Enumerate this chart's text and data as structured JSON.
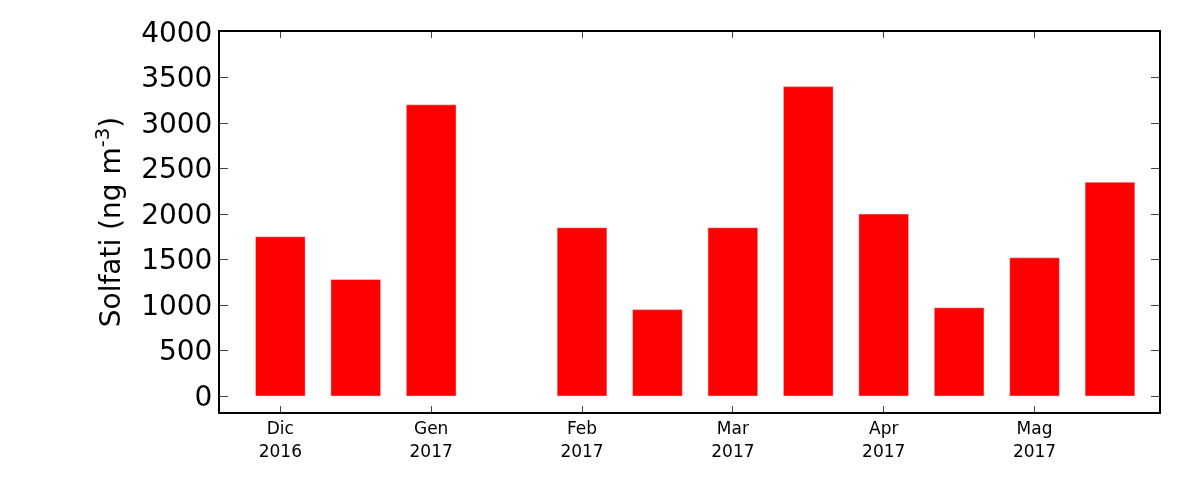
{
  "chart_data": {
    "type": "bar",
    "ylabel": "Solfati (ng m$^{-3}$)",
    "categories": [
      "Dic\n2016",
      null,
      "Gen\n2017",
      null,
      "Feb\n2017",
      null,
      "Mar\n2017",
      null,
      "Apr\n2017",
      null,
      "Mag\n2017",
      null
    ],
    "values": [
      1750,
      1280,
      3200,
      null,
      1850,
      950,
      1850,
      3400,
      2000,
      970,
      1520,
      2350
    ],
    "color": "#ff0000",
    "ylim": [
      -175,
      4000
    ],
    "yticks": [
      0,
      500,
      1000,
      1500,
      2000,
      2500,
      3000,
      3500,
      4000
    ]
  }
}
